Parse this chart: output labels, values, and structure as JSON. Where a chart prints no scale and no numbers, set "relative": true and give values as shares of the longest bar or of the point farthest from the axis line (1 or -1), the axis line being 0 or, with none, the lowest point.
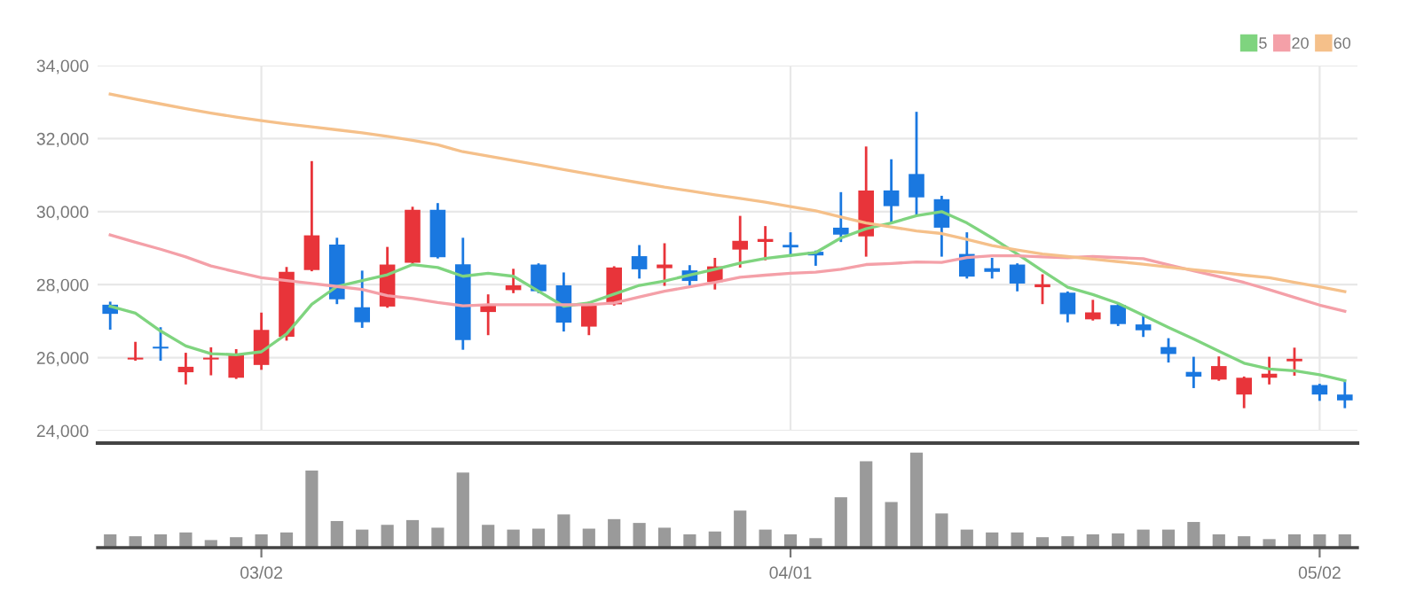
{
  "chart_data": [
    {
      "type": "candlestick",
      "categories": [
        null,
        null,
        null,
        null,
        null,
        null,
        null,
        null,
        null,
        null,
        null,
        null,
        null,
        null,
        null,
        null,
        null,
        null,
        null,
        null,
        null,
        null,
        null,
        null,
        null,
        null,
        null,
        null,
        null,
        null,
        null,
        null,
        null,
        null,
        null,
        null,
        null,
        null,
        null,
        null,
        null,
        null,
        null,
        null,
        null,
        null,
        null,
        null,
        null,
        null
      ],
      "ohlc": [
        [
          27450,
          27500,
          26800,
          27200
        ],
        [
          25950,
          26400,
          25950,
          26000
        ],
        [
          26300,
          26800,
          25950,
          26250
        ],
        [
          25600,
          26100,
          25300,
          25750
        ],
        [
          25950,
          26250,
          25550,
          26000
        ],
        [
          25450,
          26200,
          25450,
          26100
        ],
        [
          25800,
          27200,
          25700,
          26760
        ],
        [
          26570,
          28450,
          26500,
          28350
        ],
        [
          28400,
          31350,
          28400,
          29350
        ],
        [
          29100,
          29250,
          27500,
          27600
        ],
        [
          27380,
          28350,
          26850,
          26970
        ],
        [
          27400,
          29000,
          27400,
          28550
        ],
        [
          28600,
          30100,
          28550,
          30050
        ],
        [
          30050,
          30200,
          28750,
          28750
        ],
        [
          28560,
          29250,
          26250,
          26480
        ],
        [
          27250,
          27700,
          26650,
          27470
        ],
        [
          27850,
          28400,
          27800,
          27980
        ],
        [
          28550,
          28550,
          27800,
          27820
        ],
        [
          27980,
          28300,
          26750,
          26960
        ],
        [
          26850,
          27500,
          26650,
          27420
        ],
        [
          27460,
          28470,
          27460,
          28470
        ],
        [
          28780,
          29050,
          28200,
          28420
        ],
        [
          28450,
          29100,
          28000,
          28550
        ],
        [
          28390,
          28500,
          28000,
          28100
        ],
        [
          28070,
          28700,
          27900,
          28500
        ],
        [
          28960,
          29850,
          28500,
          29200
        ],
        [
          29170,
          29570,
          28700,
          29250
        ],
        [
          29090,
          29400,
          28800,
          29020
        ],
        [
          28900,
          28900,
          28550,
          28800
        ],
        [
          29560,
          30500,
          29200,
          29370
        ],
        [
          29320,
          31750,
          28800,
          30580
        ],
        [
          30580,
          31400,
          29700,
          30150
        ],
        [
          31030,
          32700,
          29950,
          30390
        ],
        [
          30340,
          30400,
          28800,
          29560
        ],
        [
          28840,
          29400,
          28200,
          28220
        ],
        [
          28450,
          28700,
          28200,
          28350
        ],
        [
          28550,
          28550,
          27850,
          28030
        ],
        [
          27930,
          28250,
          27500,
          28010
        ],
        [
          27780,
          27780,
          27000,
          27190
        ],
        [
          27050,
          27550,
          27050,
          27240
        ],
        [
          27440,
          27450,
          26900,
          26920
        ],
        [
          26910,
          27150,
          26600,
          26750
        ],
        [
          26290,
          26500,
          25900,
          26100
        ],
        [
          25610,
          25990,
          25200,
          25480
        ],
        [
          25400,
          26000,
          25400,
          25770
        ],
        [
          24990,
          25450,
          24650,
          25450
        ],
        [
          25450,
          25990,
          25300,
          25560
        ],
        [
          25900,
          26240,
          25540,
          25970
        ],
        [
          25250,
          25250,
          24850,
          24990
        ],
        [
          24990,
          25350,
          24650,
          24830
        ]
      ],
      "colors": [
        "#1a78e0",
        "#e8343a",
        "#1a78e0",
        "#e8343a",
        "#e8343a",
        "#e8343a",
        "#e8343a",
        "#e8343a",
        "#e8343a",
        "#1a78e0",
        "#1a78e0",
        "#e8343a",
        "#e8343a",
        "#1a78e0",
        "#1a78e0",
        "#e8343a",
        "#e8343a",
        "#1a78e0",
        "#1a78e0",
        "#e8343a",
        "#e8343a",
        "#1a78e0",
        "#e8343a",
        "#1a78e0",
        "#e8343a",
        "#e8343a",
        "#e8343a",
        "#1a78e0",
        "#1a78e0",
        "#1a78e0",
        "#e8343a",
        "#1a78e0",
        "#1a78e0",
        "#1a78e0",
        "#1a78e0",
        "#1a78e0",
        "#1a78e0",
        "#e8343a",
        "#1a78e0",
        "#e8343a",
        "#1a78e0",
        "#1a78e0",
        "#1a78e0",
        "#1a78e0",
        "#e8343a",
        "#e8343a",
        "#e8343a",
        "#e8343a",
        "#1a78e0",
        "#1a78e0"
      ],
      "series": [
        {
          "type": "line",
          "name": "5",
          "color": "#7fd47f",
          "values": [
            27410,
            27220,
            26730,
            26320,
            26110,
            26080,
            26160,
            26650,
            27460,
            27950,
            28110,
            28270,
            28550,
            28470,
            28230,
            28310,
            28230,
            27820,
            27410,
            27500,
            27740,
            27980,
            28100,
            28260,
            28420,
            28590,
            28720,
            28800,
            28880,
            29280,
            29530,
            29690,
            29890,
            30000,
            29690,
            29280,
            28840,
            28380,
            27930,
            27730,
            27490,
            27160,
            26830,
            26510,
            26180,
            25850,
            25690,
            25640,
            25530,
            25370
          ]
        },
        {
          "type": "line",
          "name": "20",
          "color": "#f4a0a8",
          "values": [
            29360,
            29160,
            28970,
            28760,
            28510,
            28350,
            28190,
            28110,
            28030,
            27950,
            27870,
            27700,
            27620,
            27510,
            27420,
            27450,
            27450,
            27450,
            27450,
            27450,
            27500,
            27660,
            27820,
            27940,
            28060,
            28200,
            28260,
            28310,
            28340,
            28420,
            28550,
            28580,
            28620,
            28610,
            28740,
            28790,
            28790,
            28760,
            28740,
            28770,
            28740,
            28710,
            28540,
            28380,
            28220,
            28060,
            27860,
            27650,
            27440,
            27270
          ]
        },
        {
          "type": "line",
          "name": "60",
          "color": "#f5c08a",
          "values": [
            33220,
            33080,
            32950,
            32820,
            32700,
            32590,
            32490,
            32400,
            32320,
            32240,
            32160,
            32060,
            31950,
            31830,
            31640,
            31520,
            31400,
            31280,
            31150,
            31030,
            30910,
            30790,
            30670,
            30570,
            30460,
            30360,
            30260,
            30140,
            30020,
            29850,
            29690,
            29580,
            29470,
            29400,
            29240,
            29070,
            28950,
            28840,
            28770,
            28700,
            28630,
            28560,
            28480,
            28410,
            28340,
            28260,
            28190,
            28060,
            27940,
            27810
          ]
        }
      ],
      "ylim": [
        24000,
        34000
      ],
      "yticks": [
        {
          "value": 24000,
          "label": "24,000"
        },
        {
          "value": 26000,
          "label": "26,000"
        },
        {
          "value": 28000,
          "label": "28,000"
        },
        {
          "value": 30000,
          "label": "30,000"
        },
        {
          "value": 32000,
          "label": "32,000"
        },
        {
          "value": 34000,
          "label": "34,000"
        }
      ],
      "grid": true,
      "legend": "top right",
      "tick_labels": "y"
    },
    {
      "type": "bar",
      "relative": true,
      "color": "#9a9a9a",
      "tick_labels": "x",
      "categories": [
        null,
        null,
        null,
        null,
        null,
        null,
        "03/02",
        null,
        null,
        null,
        null,
        null,
        null,
        null,
        null,
        null,
        null,
        null,
        null,
        null,
        null,
        null,
        null,
        null,
        null,
        null,
        null,
        "04/01",
        null,
        null,
        null,
        null,
        null,
        null,
        null,
        null,
        null,
        null,
        null,
        null,
        null,
        null,
        null,
        null,
        null,
        null,
        null,
        null,
        "05/02",
        null
      ],
      "values": [
        0.14,
        0.12,
        0.14,
        0.16,
        0.08,
        0.11,
        0.14,
        0.16,
        0.81,
        0.28,
        0.19,
        0.24,
        0.29,
        0.21,
        0.79,
        0.24,
        0.19,
        0.2,
        0.35,
        0.2,
        0.3,
        0.26,
        0.21,
        0.14,
        0.17,
        0.39,
        0.19,
        0.14,
        0.1,
        0.53,
        0.91,
        0.48,
        1,
        0.36,
        0.19,
        0.16,
        0.16,
        0.11,
        0.12,
        0.14,
        0.15,
        0.19,
        0.19,
        0.27,
        0.14,
        0.12,
        0.09,
        0.14,
        0.14,
        0.14
      ]
    }
  ]
}
